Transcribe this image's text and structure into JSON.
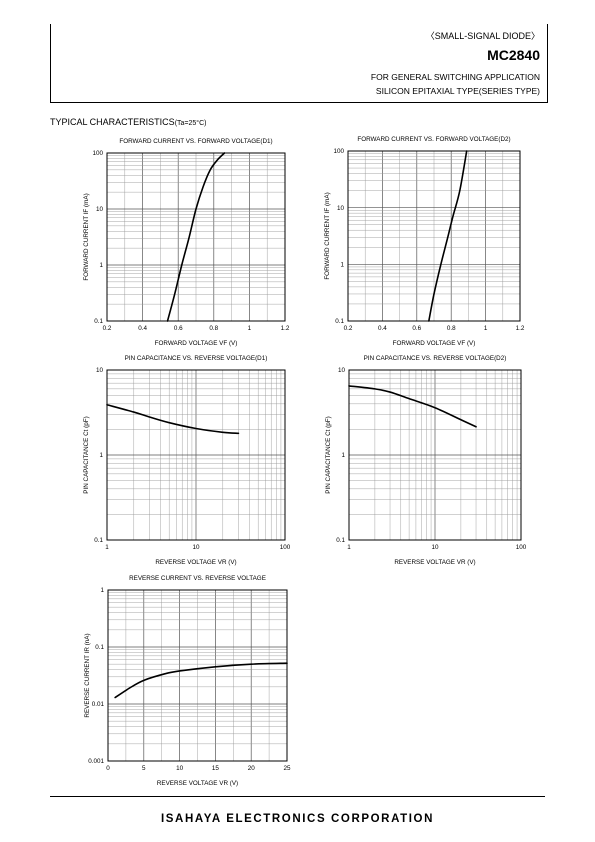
{
  "header": {
    "series_label": "〈SMALL-SIGNAL DIODE〉",
    "part_number": "MC2840",
    "application_line1": "FOR GENERAL SWITCHING APPLICATION",
    "application_line2": "SILICON EPITAXIAL TYPE(SERIES TYPE)"
  },
  "section": {
    "title": "TYPICAL CHARACTERISTICS",
    "condition": "(Ta=25°C)"
  },
  "footer": {
    "company": "ISAHAYA ELECTRONICS CORPORATION"
  },
  "chart_data": [
    {
      "type": "line",
      "title": "FORWARD CURRENT VS. FORWARD VOLTAGE(D1)",
      "xlabel": "FORWARD VOLTAGE VF (V)",
      "ylabel": "FORWARD CURRENT IF (mA)",
      "xscale": "linear",
      "yscale": "log",
      "xlim": [
        0.2,
        1.2
      ],
      "ylim": [
        0.1,
        100
      ],
      "xticks": [
        0.2,
        0.4,
        0.6,
        0.8,
        1.0,
        1.2
      ],
      "xtick_labels": [
        "0.2",
        "0.4",
        "0.6",
        "0.8",
        "1",
        "1.2"
      ],
      "yticks": [
        0.1,
        1,
        10,
        100
      ],
      "ytick_labels": [
        "0.1",
        "1",
        "10",
        "100"
      ],
      "grid": true,
      "series": [
        {
          "x": [
            0.54,
            0.58,
            0.62,
            0.66,
            0.7,
            0.74,
            0.78,
            0.82,
            0.86
          ],
          "y": [
            0.1,
            0.3,
            1.0,
            3.0,
            10,
            25,
            50,
            75,
            100
          ]
        }
      ]
    },
    {
      "type": "line",
      "title": "FORWARD CURRENT VS. FORWARD VOLTAGE(D2)",
      "xlabel": "FORWARD VOLTAGE VF (V)",
      "ylabel": "FORWARD CURRENT IF (mA)",
      "xscale": "linear",
      "yscale": "log",
      "xlim": [
        0.2,
        1.2
      ],
      "ylim": [
        0.1,
        100
      ],
      "xticks": [
        0.2,
        0.4,
        0.6,
        0.8,
        1.0,
        1.2
      ],
      "xtick_labels": [
        "0.2",
        "0.4",
        "0.6",
        "0.8",
        "1",
        "1.2"
      ],
      "yticks": [
        0.1,
        1,
        10,
        100
      ],
      "ytick_labels": [
        "0.1",
        "1",
        "10",
        "100"
      ],
      "grid": true,
      "series": [
        {
          "x": [
            0.67,
            0.7,
            0.74,
            0.78,
            0.81,
            0.85,
            0.89
          ],
          "y": [
            0.1,
            0.3,
            1.0,
            3.0,
            7.0,
            20,
            100
          ]
        }
      ]
    },
    {
      "type": "line",
      "title": "PIN CAPACITANCE VS. REVERSE VOLTAGE(D1)",
      "xlabel": "REVERSE VOLTAGE VR (V)",
      "ylabel": "PIN CAPACITANCE Ct (pF)",
      "xscale": "log",
      "yscale": "log",
      "xlim": [
        1,
        100
      ],
      "ylim": [
        0.1,
        10
      ],
      "xticks": [
        1,
        10,
        100
      ],
      "xtick_labels": [
        "1",
        "10",
        "100"
      ],
      "yticks": [
        0.1,
        1,
        10
      ],
      "ytick_labels": [
        "0.1",
        "1",
        "10"
      ],
      "grid": true,
      "series": [
        {
          "x": [
            1,
            2,
            3,
            5,
            10,
            20,
            30
          ],
          "y": [
            3.9,
            3.2,
            2.8,
            2.4,
            2.05,
            1.85,
            1.8
          ]
        }
      ]
    },
    {
      "type": "line",
      "title": "PIN CAPACITANCE VS. REVERSE VOLTAGE(D2)",
      "xlabel": "REVERSE VOLTAGE VR (V)",
      "ylabel": "PIN CAPACITANCE Ct (pF)",
      "xscale": "log",
      "yscale": "log",
      "xlim": [
        1,
        100
      ],
      "ylim": [
        0.1,
        10
      ],
      "xticks": [
        1,
        10,
        100
      ],
      "xtick_labels": [
        "1",
        "10",
        "100"
      ],
      "yticks": [
        0.1,
        1,
        10
      ],
      "ytick_labels": [
        "0.1",
        "1",
        "10"
      ],
      "grid": true,
      "series": [
        {
          "x": [
            1,
            2,
            3,
            5,
            10,
            20,
            30
          ],
          "y": [
            6.5,
            6.0,
            5.5,
            4.6,
            3.6,
            2.6,
            2.15
          ]
        }
      ]
    },
    {
      "type": "line",
      "title": "REVERSE CURRENT VS. REVERSE VOLTAGE",
      "xlabel": "REVERSE VOLTAGE VR (V)",
      "ylabel": "REVERSE CURRENT IR (nA)",
      "xscale": "linear",
      "yscale": "log",
      "xlim": [
        0,
        25
      ],
      "ylim": [
        0.001,
        1
      ],
      "xticks": [
        0,
        5,
        10,
        15,
        20,
        25
      ],
      "xtick_labels": [
        "0",
        "5",
        "10",
        "15",
        "20",
        "25"
      ],
      "yticks": [
        0.001,
        0.01,
        0.1,
        1
      ],
      "ytick_labels": [
        "0.001",
        "0.01",
        "0.1",
        "1"
      ],
      "grid": true,
      "series": [
        {
          "x": [
            1,
            3,
            5,
            8,
            10,
            15,
            20,
            25
          ],
          "y": [
            0.013,
            0.019,
            0.026,
            0.034,
            0.038,
            0.045,
            0.05,
            0.052
          ]
        }
      ]
    }
  ]
}
